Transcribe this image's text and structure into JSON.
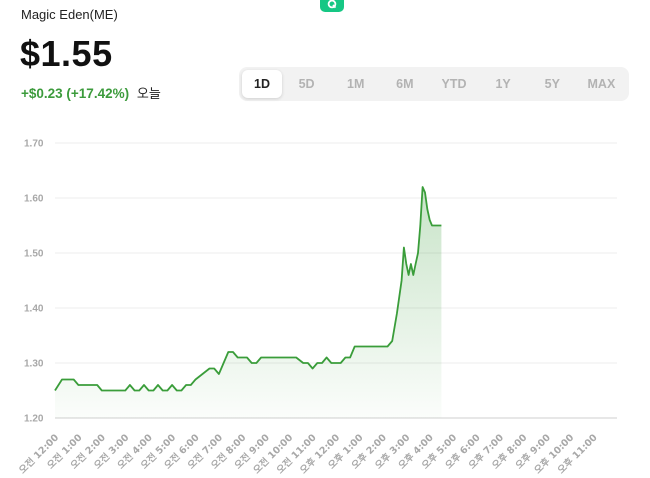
{
  "header": {
    "asset_name": "Magic Eden(ME)",
    "price": "$1.55",
    "change": "+$0.23 (+17.42%)",
    "period": "오늘"
  },
  "range_tabs": [
    {
      "label": "1D",
      "active": true
    },
    {
      "label": "5D",
      "active": false
    },
    {
      "label": "1M",
      "active": false
    },
    {
      "label": "6M",
      "active": false
    },
    {
      "label": "YTD",
      "active": false
    },
    {
      "label": "1Y",
      "active": false
    },
    {
      "label": "5Y",
      "active": false
    },
    {
      "label": "MAX",
      "active": false
    }
  ],
  "colors": {
    "line": "#3a9d3a",
    "accent": "#16c784",
    "grid": "#ececec"
  },
  "chart_data": {
    "type": "area",
    "title": "",
    "xlabel": "",
    "ylabel": "",
    "ylim": [
      1.2,
      1.7
    ],
    "y_ticks": [
      "1.20",
      "1.30",
      "1.40",
      "1.50",
      "1.60",
      "1.70"
    ],
    "x_ticks": [
      "오전 12:00",
      "오전 1:00",
      "오전 2:00",
      "오전 3:00",
      "오전 4:00",
      "오전 5:00",
      "오전 6:00",
      "오전 7:00",
      "오전 8:00",
      "오전 9:00",
      "오전 10:00",
      "오전 11:00",
      "오후 12:00",
      "오후 1:00",
      "오후 2:00",
      "오후 3:00",
      "오후 4:00",
      "오후 5:00",
      "오후 6:00",
      "오후 7:00",
      "오후 8:00",
      "오후 9:00",
      "오후 10:00",
      "오후 11:00"
    ],
    "x_hours": [
      0,
      24
    ],
    "grid": true,
    "series": [
      {
        "x": [
          0,
          0.3,
          0.8,
          1.0,
          1.3,
          1.8,
          2.0,
          2.3,
          2.8,
          3.0,
          3.2,
          3.4,
          3.6,
          3.8,
          4.0,
          4.2,
          4.4,
          4.6,
          4.8,
          5.0,
          5.2,
          5.4,
          5.6,
          5.8,
          6.0,
          6.3,
          6.6,
          6.8,
          7.0,
          7.2,
          7.4,
          7.6,
          7.8,
          8.0,
          8.2,
          8.4,
          8.6,
          8.8,
          9.0,
          9.2,
          9.4,
          9.6,
          9.8,
          10.0,
          10.3,
          10.6,
          10.8,
          11.0,
          11.2,
          11.4,
          11.6,
          11.8,
          12.0,
          12.2,
          12.4,
          12.6,
          12.8,
          13.0,
          13.2,
          13.4,
          13.6,
          13.8,
          14.0,
          14.2,
          14.4,
          14.6,
          14.8,
          14.9,
          15.0,
          15.1,
          15.2,
          15.3,
          15.4,
          15.5,
          15.6,
          15.7,
          15.8,
          15.9,
          16.0,
          16.1,
          16.2,
          16.3,
          16.4,
          16.5
        ],
        "y": [
          1.25,
          1.27,
          1.27,
          1.26,
          1.26,
          1.26,
          1.25,
          1.25,
          1.25,
          1.25,
          1.26,
          1.25,
          1.25,
          1.26,
          1.25,
          1.25,
          1.26,
          1.25,
          1.25,
          1.26,
          1.25,
          1.25,
          1.26,
          1.26,
          1.27,
          1.28,
          1.29,
          1.29,
          1.28,
          1.3,
          1.32,
          1.32,
          1.31,
          1.31,
          1.31,
          1.3,
          1.3,
          1.31,
          1.31,
          1.31,
          1.31,
          1.31,
          1.31,
          1.31,
          1.31,
          1.3,
          1.3,
          1.29,
          1.3,
          1.3,
          1.31,
          1.3,
          1.3,
          1.3,
          1.31,
          1.31,
          1.33,
          1.33,
          1.33,
          1.33,
          1.33,
          1.33,
          1.33,
          1.33,
          1.34,
          1.39,
          1.45,
          1.51,
          1.48,
          1.46,
          1.48,
          1.46,
          1.48,
          1.5,
          1.55,
          1.62,
          1.61,
          1.58,
          1.56,
          1.55,
          1.55,
          1.55,
          1.55,
          1.55
        ]
      }
    ]
  }
}
